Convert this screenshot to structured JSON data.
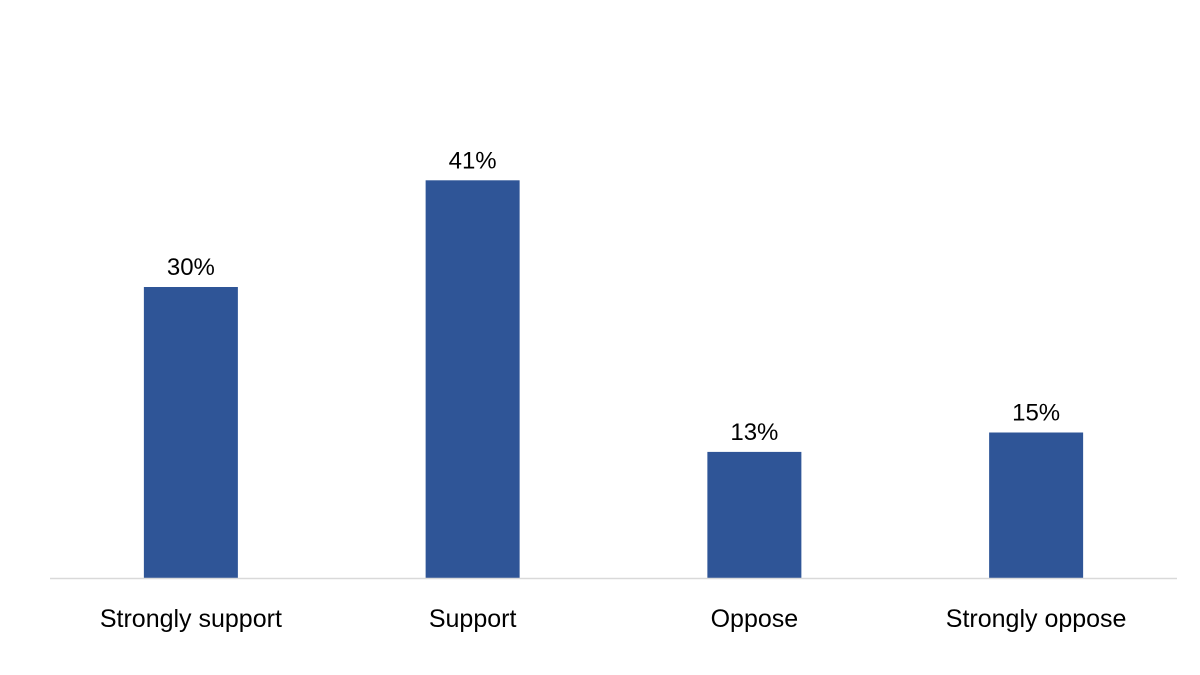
{
  "chart_data": {
    "type": "bar",
    "title": "",
    "xlabel": "",
    "ylabel": "",
    "categories": [
      "Strongly support",
      "Support",
      "Oppose",
      "Strongly oppose"
    ],
    "values": [
      30,
      41,
      13,
      15
    ],
    "data_labels": [
      "30%",
      "41%",
      "13%",
      "15%"
    ],
    "ylim": [
      0,
      50
    ],
    "grid": false,
    "legend": "none",
    "bar_color": "#2F5597",
    "axis_color": "#D9D9D9"
  }
}
